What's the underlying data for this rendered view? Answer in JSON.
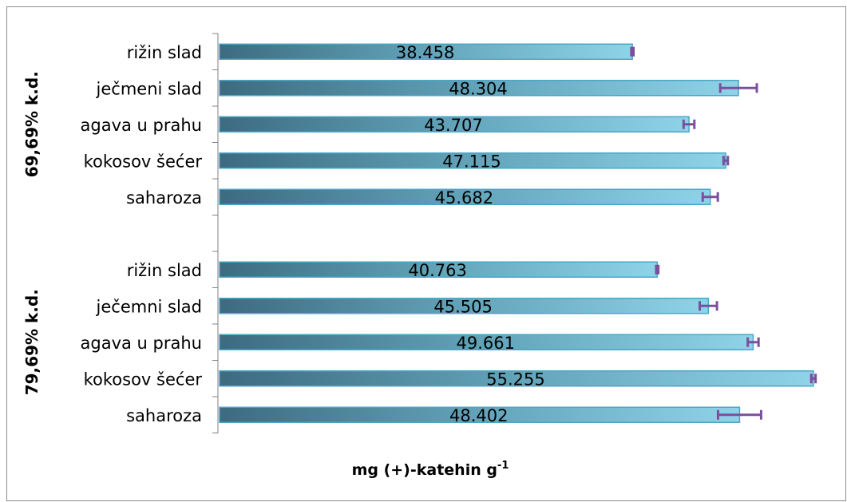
{
  "header": {
    "title": ""
  },
  "colors": {
    "bar_left": "#3c6b80",
    "bar_right": "#8fd3e8",
    "bar_stroke": "#4aa7c6",
    "error_bar": "#7b4f9d",
    "axis": "#808080"
  },
  "chart_data": {
    "type": "bar",
    "orientation": "horizontal",
    "title": "",
    "xlabel": "mg (+)-katehin g",
    "xlabel_superscript": "-1",
    "ylabel": "",
    "grid": false,
    "legend": "none",
    "xlim": [
      0,
      56
    ],
    "groups": [
      {
        "name": "69,69% k.d.",
        "bars": [
          {
            "category": "rižin slad",
            "value": 38.458,
            "error": 0.1,
            "value_label": "38.458"
          },
          {
            "category": "ječmeni slad",
            "value": 48.304,
            "error": 1.7,
            "value_label": "48.304"
          },
          {
            "category": "agava u prahu",
            "value": 43.707,
            "error": 0.5,
            "value_label": "43.707"
          },
          {
            "category": "kokosov šećer",
            "value": 47.115,
            "error": 0.2,
            "value_label": "47.115"
          },
          {
            "category": "saharoza",
            "value": 45.682,
            "error": 0.7,
            "value_label": "45.682"
          }
        ]
      },
      {
        "name": "79,69% k.d.",
        "bars": [
          {
            "category": "rižin slad",
            "value": 40.763,
            "error": 0.1,
            "value_label": "40.763"
          },
          {
            "category": "ječemni slad",
            "value": 45.505,
            "error": 0.8,
            "value_label": "45.505"
          },
          {
            "category": "agava u prahu",
            "value": 49.661,
            "error": 0.5,
            "value_label": "49.661"
          },
          {
            "category": "kokosov šećer",
            "value": 55.255,
            "error": 0.2,
            "value_label": "55.255"
          },
          {
            "category": "saharoza",
            "value": 48.402,
            "error": 2.0,
            "value_label": "48.402"
          }
        ]
      }
    ]
  }
}
